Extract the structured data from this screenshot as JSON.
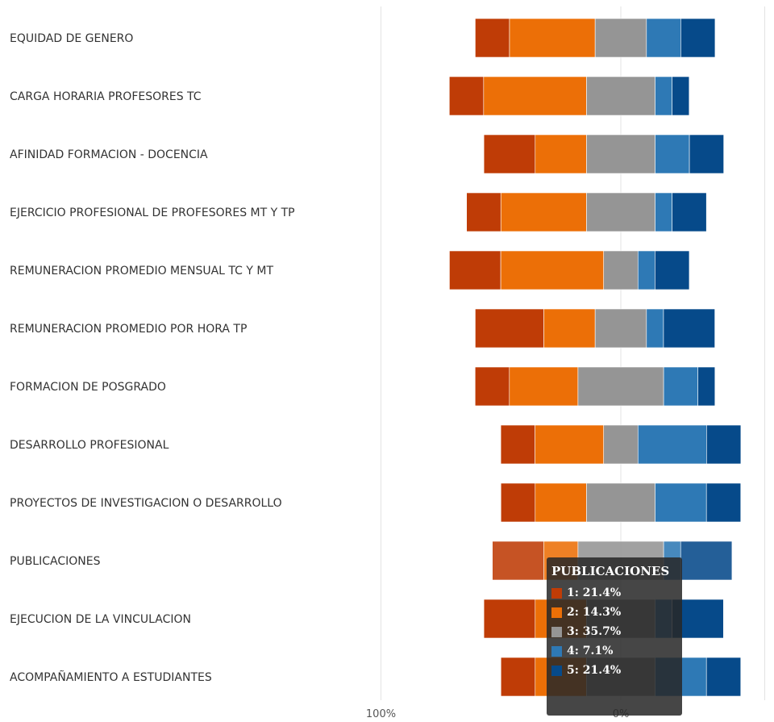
{
  "chart_data": {
    "type": "bar",
    "subtype": "diverging-stacked-horizontal",
    "categories": [
      "EQUIDAD DE GENERO",
      "CARGA HORARIA PROFESORES TC",
      "AFINIDAD FORMACION - DOCENCIA",
      "EJERCICIO PROFESIONAL DE PROFESORES MT Y TP",
      "REMUNERACION PROMEDIO MENSUAL TC Y MT",
      "REMUNERACION PROMEDIO POR HORA TP",
      "FORMACION DE POSGRADO",
      "DESARROLLO PROFESIONAL",
      "PROYECTOS DE INVESTIGACION O DESARROLLO",
      "PUBLICACIONES",
      "EJECUCION DE LA VINCULACION",
      "ACOMPAÑAMIENTO A ESTUDIANTES"
    ],
    "series": [
      {
        "name": "1",
        "color": "#bf3c06",
        "values": [
          14.3,
          14.3,
          21.4,
          14.3,
          21.4,
          28.6,
          14.3,
          14.3,
          14.3,
          21.4,
          21.4,
          14.3
        ]
      },
      {
        "name": "2",
        "color": "#ec6f07",
        "values": [
          35.7,
          42.9,
          21.4,
          35.7,
          42.9,
          21.4,
          28.6,
          28.6,
          21.4,
          14.3,
          21.4,
          21.4
        ]
      },
      {
        "name": "3",
        "color": "#959595",
        "values": [
          21.4,
          28.6,
          28.6,
          28.6,
          14.3,
          21.4,
          35.7,
          14.3,
          28.6,
          35.7,
          28.6,
          28.6
        ]
      },
      {
        "name": "4",
        "color": "#2e79b5",
        "values": [
          14.3,
          7.1,
          14.3,
          7.1,
          7.1,
          7.1,
          14.3,
          28.6,
          21.4,
          7.1,
          7.1,
          21.4
        ]
      },
      {
        "name": "5",
        "color": "#064a8a",
        "values": [
          14.3,
          7.1,
          14.3,
          14.3,
          14.3,
          21.4,
          7.1,
          14.3,
          14.3,
          21.4,
          21.4,
          14.3
        ]
      }
    ],
    "x_ticks": [
      "100%",
      "0%"
    ],
    "xlim": [
      -100,
      60
    ],
    "grid": true,
    "highlighted_category": "PUBLICACIONES"
  },
  "tooltip": {
    "title": "PUBLICACIONES",
    "rows": [
      {
        "label": "1: 21.4%",
        "color": "#bf3c06"
      },
      {
        "label": "2: 14.3%",
        "color": "#ec6f07"
      },
      {
        "label": "3: 35.7%",
        "color": "#959595"
      },
      {
        "label": "4: 7.1%",
        "color": "#2e79b5"
      },
      {
        "label": "5: 21.4%",
        "color": "#064a8a"
      }
    ]
  }
}
